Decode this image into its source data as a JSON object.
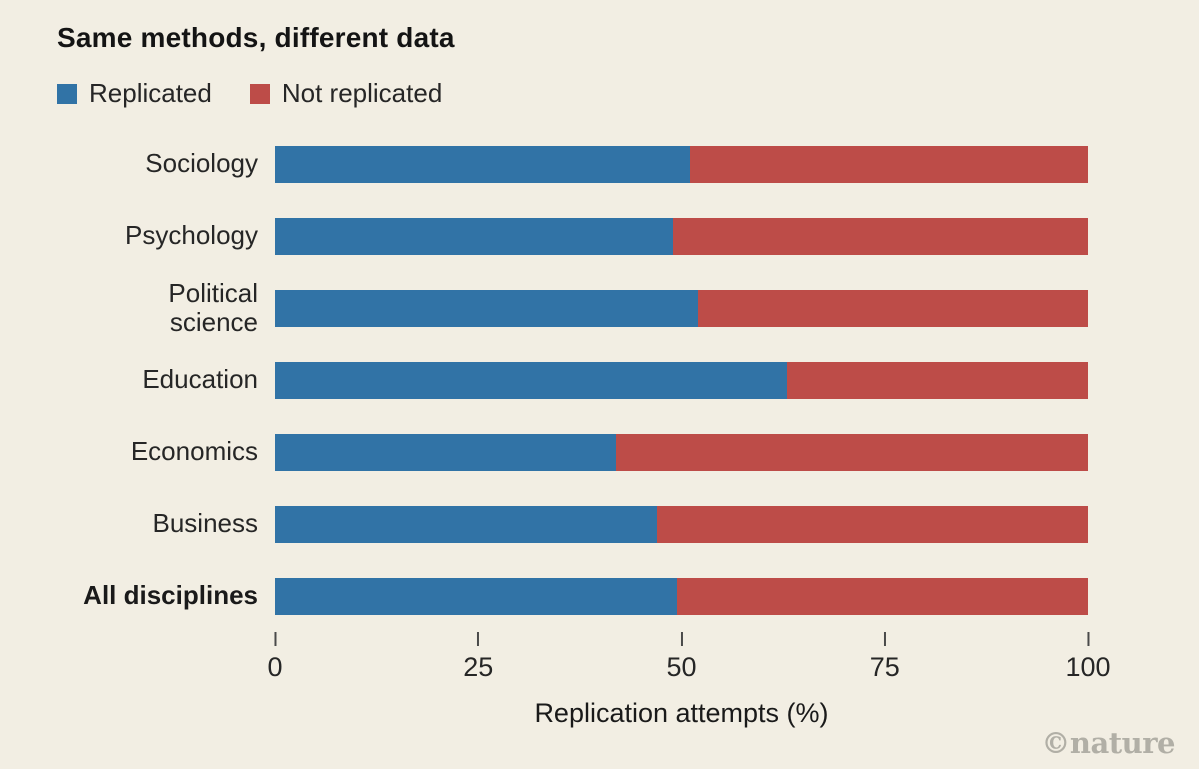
{
  "title": "Same methods, different data",
  "colors": {
    "replicated": "#3173a6",
    "not_replicated": "#bd4c48",
    "background": "#f2eee3",
    "watermark": "#b1afa6"
  },
  "legend": [
    {
      "label": "Replicated",
      "color": "#3173a6"
    },
    {
      "label": "Not replicated",
      "color": "#bd4c48"
    }
  ],
  "chart_data": {
    "type": "bar",
    "orientation": "horizontal",
    "stacked": true,
    "title": "Same methods, different data",
    "categories": [
      "Sociology",
      "Psychology",
      "Political science",
      "Education",
      "Economics",
      "Business",
      "All disciplines"
    ],
    "categories_display": [
      "Sociology",
      "Psychology",
      "Political\nscience",
      "Education",
      "Economics",
      "Business",
      "All disciplines"
    ],
    "series": [
      {
        "name": "Replicated",
        "color": "#3173a6",
        "values": [
          51,
          49,
          52,
          63,
          42,
          47,
          49.5
        ]
      },
      {
        "name": "Not replicated",
        "color": "#bd4c48",
        "values": [
          49,
          51,
          48,
          37,
          58,
          53,
          50.5
        ]
      }
    ],
    "xlabel": "Replication attempts (%)",
    "xlim": [
      0,
      100
    ],
    "xticks": [
      "0",
      "25",
      "50",
      "75",
      "100"
    ],
    "grid": false,
    "legend_position": "top-left"
  },
  "axis": {
    "label": "Replication attempts (%)",
    "ticks": [
      "0",
      "25",
      "50",
      "75",
      "100"
    ]
  },
  "watermark": "©nature"
}
